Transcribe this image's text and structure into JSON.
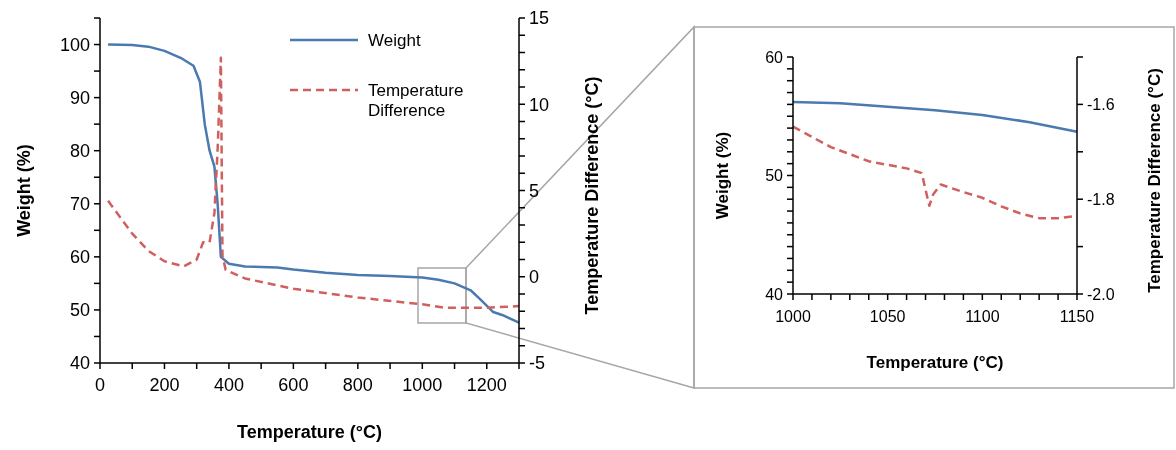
{
  "chart_data": [
    {
      "type": "line",
      "xlabel": "Temperature (°C)",
      "ylabel": "Weight (%)",
      "y2label": "Temperature Difference (°C)",
      "legend": "top",
      "xlim": [
        0,
        1300
      ],
      "xticks": [
        0,
        {
          "value": 100,
          "label": null
        },
        200,
        {
          "value": 300,
          "label": null
        },
        400,
        {
          "value": 500,
          "label": null
        },
        600,
        {
          "value": 700,
          "label": null
        },
        800,
        {
          "value": 900,
          "label": null
        },
        1000,
        {
          "value": 1100,
          "label": null
        },
        1200,
        {
          "value": 1300,
          "label": null
        }
      ],
      "ylim": [
        40,
        105
      ],
      "yticks": [
        40,
        {
          "value": 45,
          "label": null
        },
        50,
        {
          "value": 55,
          "label": null
        },
        60,
        {
          "value": 65,
          "label": null
        },
        70,
        {
          "value": 75,
          "label": null
        },
        80,
        {
          "value": 85,
          "label": null
        },
        90,
        {
          "value": 95,
          "label": null
        },
        100,
        {
          "value": 105,
          "label": null
        }
      ],
      "y2lim": [
        -5,
        15
      ],
      "y2ticks": [
        -5,
        {
          "value": -4,
          "label": null
        },
        {
          "value": -3,
          "label": null
        },
        {
          "value": -2,
          "label": null
        },
        {
          "value": -1,
          "label": null
        },
        0,
        {
          "value": 1,
          "label": null
        },
        {
          "value": 2,
          "label": null
        },
        {
          "value": 3,
          "label": null
        },
        {
          "value": 4,
          "label": null
        },
        5,
        {
          "value": 6,
          "label": null
        },
        {
          "value": 7,
          "label": null
        },
        {
          "value": 8,
          "label": null
        },
        {
          "value": 9,
          "label": null
        },
        10,
        {
          "value": 11,
          "label": null
        },
        {
          "value": 12,
          "label": null
        },
        {
          "value": 13,
          "label": null
        },
        {
          "value": 14,
          "label": null
        },
        15
      ],
      "series": [
        {
          "name": "Weight",
          "color": "#4a7ab0",
          "line_style": "solid",
          "x": [
            25,
            100,
            150,
            200,
            250,
            290,
            310,
            325,
            340,
            355,
            365,
            375,
            400,
            450,
            550,
            600,
            700,
            800,
            900,
            1000,
            1050,
            1100,
            1150,
            1180,
            1220,
            1250,
            1300
          ],
          "values": [
            100,
            99.9,
            99.6,
            98.8,
            97.5,
            96,
            93,
            85,
            80,
            77,
            70,
            60,
            58.7,
            58.2,
            58,
            57.6,
            57,
            56.6,
            56.4,
            56.1,
            55.7,
            55,
            53.7,
            52,
            49.6,
            49,
            47.6
          ]
        },
        {
          "name": "Temperature Difference",
          "color": "#d0605e",
          "line_style": "dashed",
          "axis": "y2",
          "x": [
            25,
            100,
            150,
            200,
            260,
            300,
            320,
            340,
            355,
            365,
            375,
            380,
            390,
            450,
            600,
            800,
            1000,
            1070,
            1100,
            1150,
            1200,
            1300
          ],
          "values": [
            4.4,
            2.5,
            1.5,
            0.9,
            0.6,
            1.0,
            2.0,
            2.0,
            3.7,
            7.4,
            12.7,
            1.2,
            0.4,
            -0.1,
            -0.7,
            -1.2,
            -1.6,
            -1.8,
            -1.8,
            -1.8,
            -1.8,
            -1.7
          ]
        }
      ]
    },
    {
      "type": "line",
      "xlabel": "Temperature (°C)",
      "ylabel": "Weight (%)",
      "y2label": "Temperature Difference (°C)",
      "xlim": [
        1000,
        1150
      ],
      "xticks": [
        1000,
        {
          "value": 1010,
          "label": null
        },
        {
          "value": 1020,
          "label": null
        },
        {
          "value": 1030,
          "label": null
        },
        {
          "value": 1040,
          "label": null
        },
        1050,
        {
          "value": 1060,
          "label": null
        },
        {
          "value": 1070,
          "label": null
        },
        {
          "value": 1080,
          "label": null
        },
        {
          "value": 1090,
          "label": null
        },
        1100,
        {
          "value": 1110,
          "label": null
        },
        {
          "value": 1120,
          "label": null
        },
        {
          "value": 1130,
          "label": null
        },
        {
          "value": 1140,
          "label": null
        },
        1150
      ],
      "ylim": [
        40,
        60
      ],
      "yticks": [
        40,
        {
          "value": 41,
          "label": null
        },
        {
          "value": 42,
          "label": null
        },
        {
          "value": 43,
          "label": null
        },
        {
          "value": 44,
          "label": null
        },
        {
          "value": 45,
          "label": null
        },
        {
          "value": 46,
          "label": null
        },
        {
          "value": 47,
          "label": null
        },
        {
          "value": 48,
          "label": null
        },
        {
          "value": 49,
          "label": null
        },
        50,
        {
          "value": 51,
          "label": null
        },
        {
          "value": 52,
          "label": null
        },
        {
          "value": 53,
          "label": null
        },
        {
          "value": 54,
          "label": null
        },
        {
          "value": 55,
          "label": null
        },
        {
          "value": 56,
          "label": null
        },
        {
          "value": 57,
          "label": null
        },
        {
          "value": 58,
          "label": null
        },
        {
          "value": 59,
          "label": null
        },
        60
      ],
      "y2lim": [
        -2.0,
        -1.5
      ],
      "y2ticks": [
        {
          "value": -2.0,
          "label": "-2.0"
        },
        {
          "value": -1.9,
          "label": null
        },
        {
          "value": -1.8,
          "label": "-1.8"
        },
        {
          "value": -1.7,
          "label": null
        },
        {
          "value": -1.6,
          "label": "-1.6"
        },
        {
          "value": -1.5,
          "label": null
        }
      ],
      "series": [
        {
          "color": "#4a7ab0",
          "line_style": "solid",
          "x": [
            1000,
            1025,
            1050,
            1075,
            1100,
            1125,
            1150
          ],
          "values": [
            56.2,
            56.1,
            55.8,
            55.5,
            55.1,
            54.5,
            53.7
          ]
        },
        {
          "color": "#d0605e",
          "line_style": "dashed",
          "axis": "y2",
          "x": [
            1000,
            1020,
            1040,
            1060,
            1068,
            1070,
            1072,
            1074,
            1078,
            1090,
            1100,
            1110,
            1120,
            1130,
            1140,
            1150
          ],
          "values": [
            -1.647,
            -1.69,
            -1.72,
            -1.735,
            -1.745,
            -1.78,
            -1.814,
            -1.79,
            -1.769,
            -1.785,
            -1.797,
            -1.815,
            -1.83,
            -1.84,
            -1.84,
            -1.835
          ]
        }
      ]
    }
  ]
}
